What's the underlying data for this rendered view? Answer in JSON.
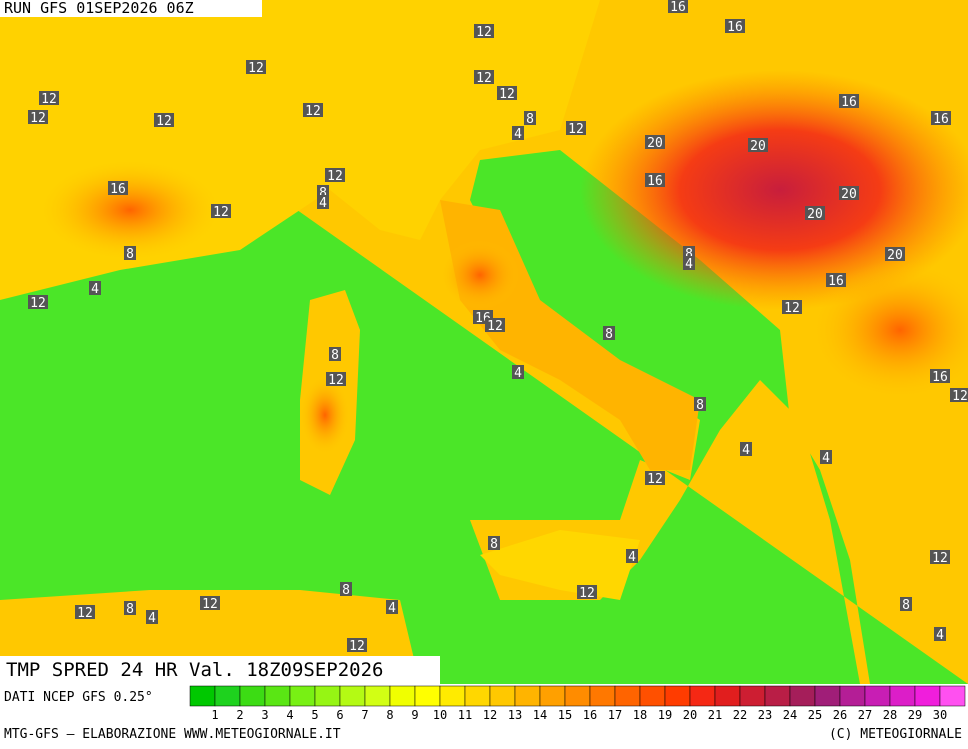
{
  "header": {
    "run": "RUN GFS 01SEP2026 06Z"
  },
  "contour_labels": [
    "16",
    "16",
    "12",
    "12",
    "12",
    "12",
    "12",
    "12",
    "12",
    "12",
    "8",
    "4",
    "12",
    "16",
    "16",
    "20",
    "20",
    "16",
    "12",
    "8",
    "4",
    "16",
    "12",
    "20",
    "20",
    "8",
    "8",
    "4",
    "20",
    "4",
    "12",
    "16",
    "12",
    "16",
    "12",
    "8",
    "8",
    "12",
    "4",
    "16",
    "12",
    "8",
    "4",
    "4",
    "12",
    "8",
    "4",
    "12",
    "12",
    "8",
    "12",
    "12",
    "8",
    "4",
    "4",
    "8",
    "4",
    "12"
  ],
  "footer": {
    "product": "TMP SPRED 24 HR Val. 18Z09SEP2026",
    "source": "DATI NCEP GFS 0.25°",
    "credit_left": "MTG-GFS — ELABORAZIONE WWW.METEOGIORNALE.IT",
    "credit_right": "(C) METEOGIORNALE"
  },
  "legend": {
    "values": [
      1,
      2,
      3,
      4,
      5,
      6,
      7,
      8,
      9,
      10,
      11,
      12,
      13,
      14,
      15,
      16,
      17,
      18,
      19,
      20,
      21,
      22,
      23,
      24,
      25,
      26,
      27,
      28,
      29,
      30
    ],
    "colors": [
      "#00c800",
      "#1ed21e",
      "#3cdc14",
      "#5ae614",
      "#78f014",
      "#96f514",
      "#b4fa14",
      "#d2ff14",
      "#f0ff00",
      "#ffff00",
      "#ffeb00",
      "#ffd700",
      "#ffc800",
      "#ffb400",
      "#ffa000",
      "#ff8c00",
      "#ff7800",
      "#ff6400",
      "#ff5000",
      "#ff3c00",
      "#f52814",
      "#e11e1e",
      "#cd1e32",
      "#b91e46",
      "#a51e5a",
      "#a01e78",
      "#b41e96",
      "#c81eb4",
      "#dc1ec8",
      "#f01edc",
      "#ff50f0"
    ]
  }
}
